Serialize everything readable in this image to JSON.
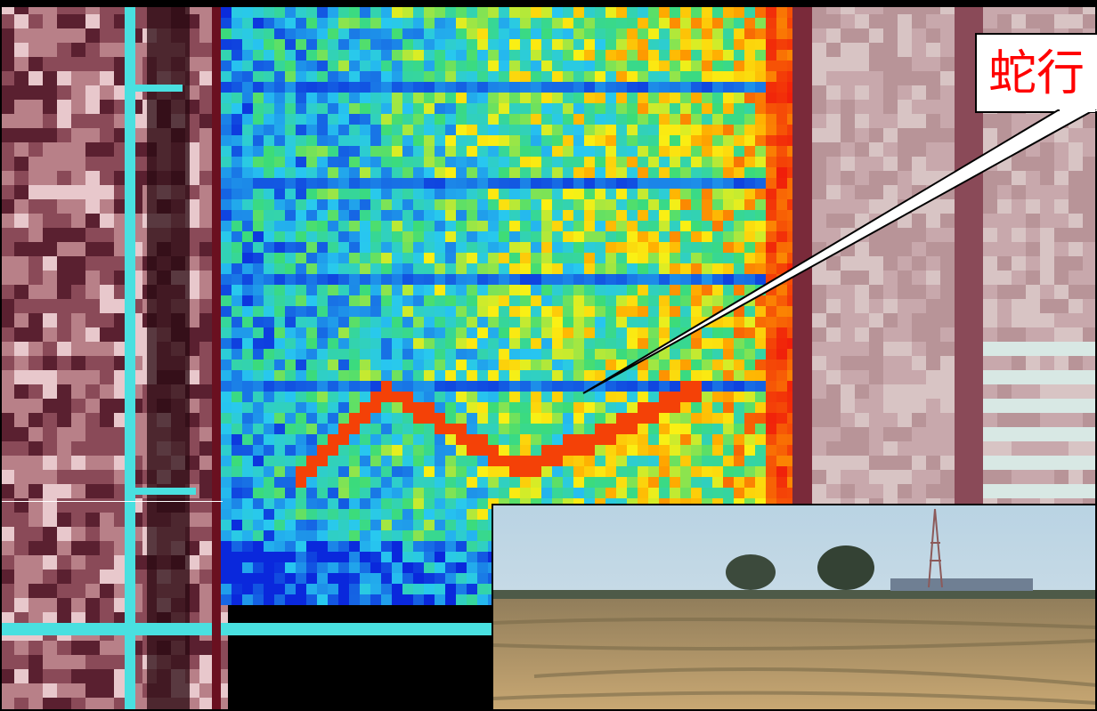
{
  "callout": {
    "text": "蛇行"
  }
}
